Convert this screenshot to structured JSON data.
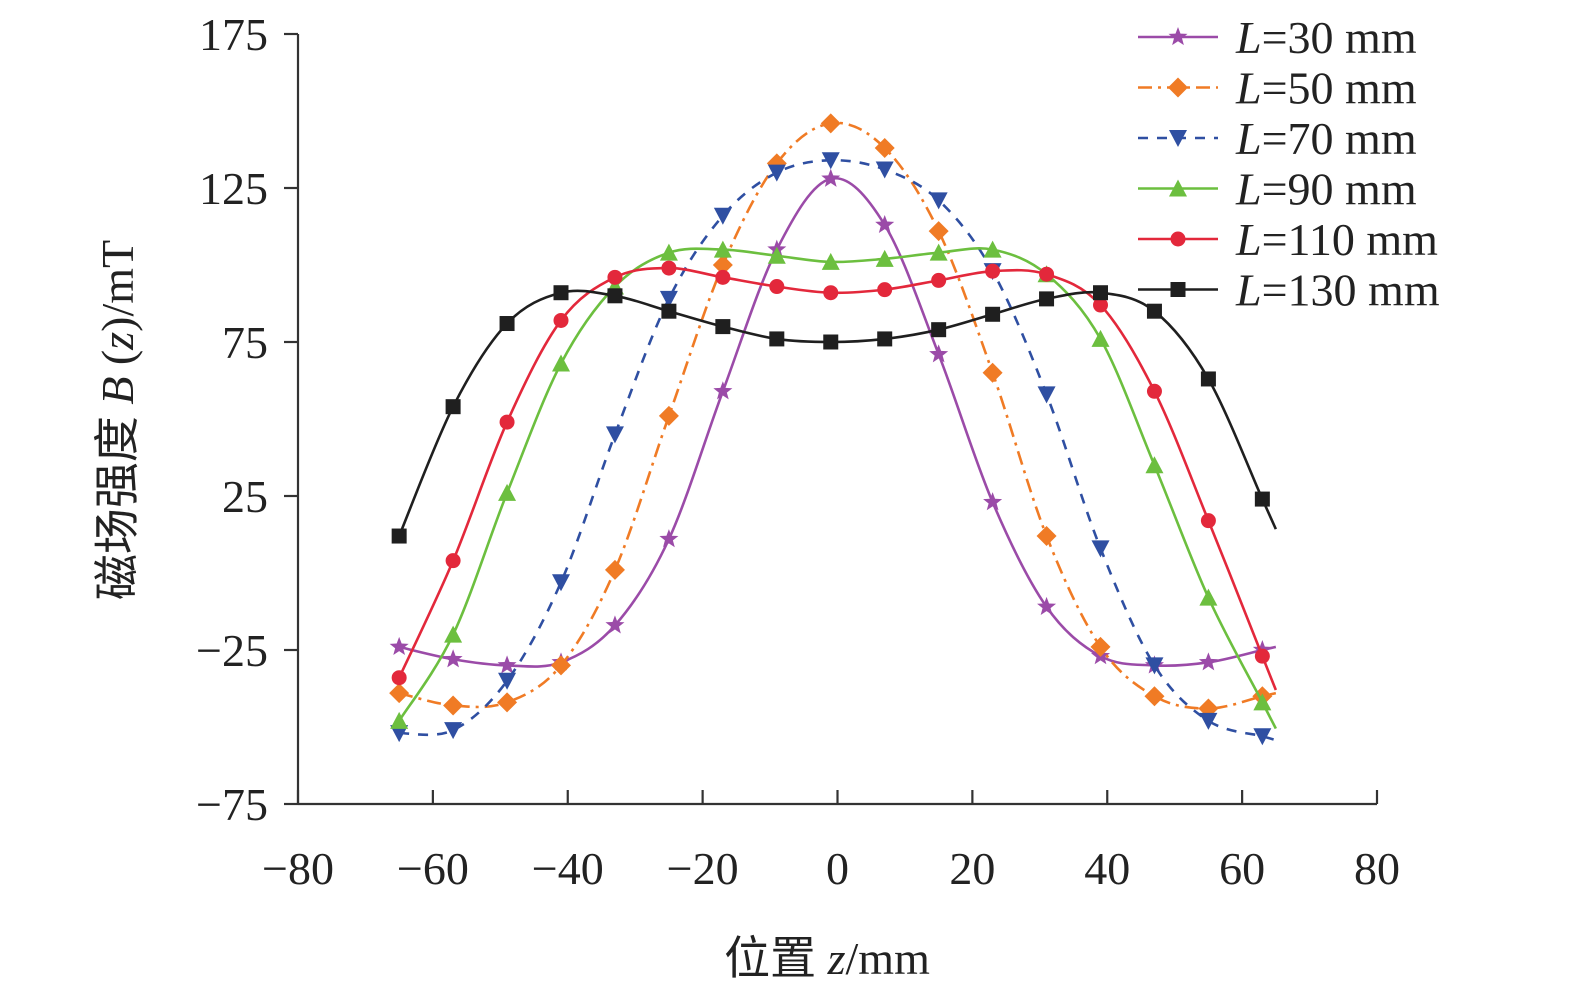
{
  "chart_data": {
    "type": "line",
    "title": "",
    "xlabel": {
      "prefix": "位置 ",
      "var": "z",
      "suffix": "/mm"
    },
    "ylabel": {
      "prefix": "磁场强度 ",
      "var1": "B",
      "open": " (",
      "var2": "z",
      "suffix": ")/mT"
    },
    "xlim": [
      -80,
      80
    ],
    "ylim": [
      -75,
      175
    ],
    "xticks": [
      -80,
      -60,
      -40,
      -20,
      0,
      20,
      40,
      60,
      80
    ],
    "yticks": [
      -75,
      -25,
      25,
      75,
      125,
      175
    ],
    "xtick_labels": [
      "−80",
      "−60",
      "−40",
      "−20",
      "0",
      "20",
      "40",
      "60",
      "80"
    ],
    "ytick_labels": [
      "−75",
      "−25",
      "25",
      "75",
      "125",
      "175"
    ],
    "legend_position": "top-right",
    "series": [
      {
        "name": "L=30 mm",
        "var": "L",
        "value_text": "=30 mm",
        "color": "#9B4BA8",
        "marker": "star",
        "dash": "solid",
        "x": [
          -65,
          -57,
          -49,
          -41,
          -33,
          -25,
          -17,
          -9,
          -1,
          7,
          15,
          23,
          31,
          39,
          47,
          55,
          63
        ],
        "y": [
          -24,
          -28,
          -30,
          -29,
          -17,
          11,
          59,
          105,
          128,
          113,
          71,
          23,
          -11,
          -27,
          -30,
          -29,
          -25
        ]
      },
      {
        "name": "L=50 mm",
        "var": "L",
        "value_text": "=50 mm",
        "color": "#F07B25",
        "marker": "diamond",
        "dash": "dashdot",
        "x": [
          -65,
          -57,
          -49,
          -41,
          -33,
          -25,
          -17,
          -9,
          -1,
          7,
          15,
          23,
          31,
          39,
          47,
          55,
          63
        ],
        "y": [
          -39,
          -43,
          -42,
          -30,
          1,
          51,
          100,
          133,
          146,
          138,
          111,
          65,
          12,
          -24,
          -40,
          -44,
          -40
        ]
      },
      {
        "name": "L=70 mm",
        "var": "L",
        "value_text": "=70 mm",
        "color": "#2F4FA2",
        "marker": "triangle-down",
        "dash": "dash",
        "x": [
          -65,
          -57,
          -49,
          -41,
          -33,
          -25,
          -17,
          -9,
          -1,
          7,
          15,
          23,
          31,
          39,
          47,
          55,
          63
        ],
        "y": [
          -52,
          -51,
          -35,
          -3,
          45,
          89,
          116,
          130,
          134,
          131,
          121,
          98,
          58,
          8,
          -30,
          -48,
          -53
        ]
      },
      {
        "name": "L=90 mm",
        "var": "L",
        "value_text": "=90 mm",
        "color": "#6CBF3F",
        "marker": "triangle-up",
        "dash": "solid",
        "x": [
          -65,
          -57,
          -49,
          -41,
          -33,
          -25,
          -17,
          -9,
          -1,
          7,
          15,
          23,
          31,
          39,
          47,
          55,
          63
        ],
        "y": [
          -48,
          -20,
          26,
          68,
          93,
          104,
          105,
          103,
          101,
          102,
          104,
          105,
          97,
          76,
          35,
          -8,
          -42
        ]
      },
      {
        "name": "L=110 mm",
        "var": "L",
        "value_text": "=110 mm",
        "color": "#E3283B",
        "marker": "circle",
        "dash": "solid",
        "x": [
          -65,
          -57,
          -49,
          -41,
          -33,
          -25,
          -17,
          -9,
          -1,
          7,
          15,
          23,
          31,
          39,
          47,
          55,
          63
        ],
        "y": [
          -34,
          4,
          49,
          82,
          96,
          99,
          96,
          93,
          91,
          92,
          95,
          98,
          97,
          87,
          59,
          17,
          -27
        ]
      },
      {
        "name": "L=130 mm",
        "var": "L",
        "value_text": "=130 mm",
        "color": "#1F1F1F",
        "marker": "square",
        "dash": "solid",
        "x": [
          -65,
          -57,
          -49,
          -41,
          -33,
          -25,
          -17,
          -9,
          -1,
          7,
          15,
          23,
          31,
          39,
          47,
          55,
          63
        ],
        "y": [
          12,
          54,
          81,
          91,
          90,
          85,
          80,
          76,
          75,
          76,
          79,
          84,
          89,
          91,
          85,
          63,
          24
        ]
      }
    ]
  }
}
